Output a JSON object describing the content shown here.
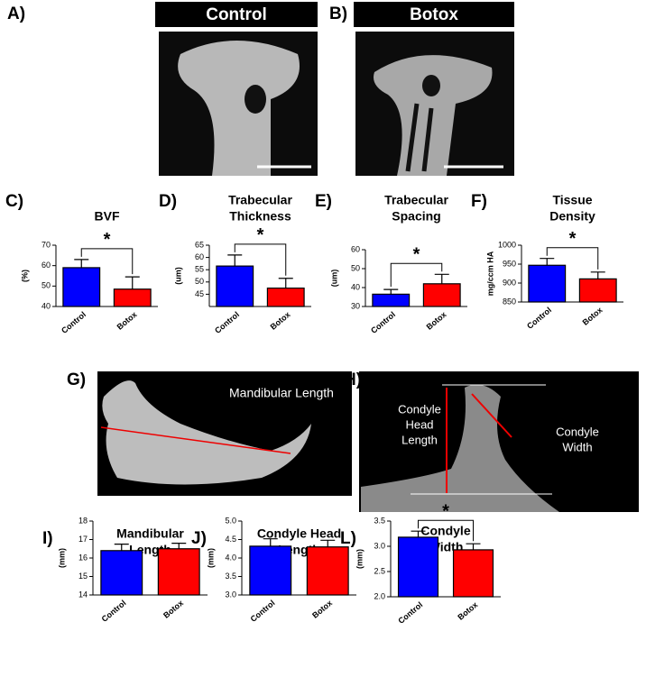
{
  "images": [
    {
      "label": "A)",
      "title": "Control"
    },
    {
      "label": "B)",
      "title": "Botox"
    },
    {
      "label": "G)",
      "annotation": "Mandibular Length"
    },
    {
      "label": "H)",
      "annotation_lines": [
        "Condyle",
        "Head",
        "Length"
      ],
      "annotation2_lines": [
        "Condyle",
        "Width"
      ]
    }
  ],
  "chart_data": [
    {
      "type": "bar",
      "label": "C)",
      "title_lines": [
        "BVF"
      ],
      "ylabel": "(%)",
      "categories": [
        "Control",
        "Botox"
      ],
      "colors": [
        "#0000ff",
        "#ff0000"
      ],
      "values": [
        59,
        48.5
      ],
      "errors": [
        4,
        6
      ],
      "ylim": [
        40,
        70
      ],
      "yticks": [
        40,
        50,
        60,
        70
      ],
      "significance": "*"
    },
    {
      "type": "bar",
      "label": "D)",
      "title_lines": [
        "Trabecular",
        "Thickness"
      ],
      "ylabel": "(um)",
      "categories": [
        "Control",
        "Botox"
      ],
      "colors": [
        "#0000ff",
        "#ff0000"
      ],
      "values": [
        56.5,
        47.5
      ],
      "errors": [
        4.5,
        4
      ],
      "ylim": [
        40,
        65
      ],
      "yticks": [
        45,
        50,
        55,
        60,
        65
      ],
      "significance": "*"
    },
    {
      "type": "bar",
      "label": "E)",
      "title_lines": [
        "Trabecular",
        "Spacing"
      ],
      "ylabel": "(um)",
      "categories": [
        "Control",
        "Botox"
      ],
      "colors": [
        "#0000ff",
        "#ff0000"
      ],
      "values": [
        36.5,
        42
      ],
      "errors": [
        2.5,
        5
      ],
      "ylim": [
        30,
        60
      ],
      "yticks": [
        30,
        40,
        50,
        60
      ],
      "significance": "*"
    },
    {
      "type": "bar",
      "label": "F)",
      "title_lines": [
        "Tissue",
        "Density"
      ],
      "ylabel": "mg/ccm HA",
      "categories": [
        "Control",
        "Botox"
      ],
      "colors": [
        "#0000ff",
        "#ff0000"
      ],
      "values": [
        947,
        911
      ],
      "errors": [
        18,
        18
      ],
      "ylim": [
        850,
        1000
      ],
      "yticks": [
        850,
        900,
        950,
        1000
      ],
      "significance": "*"
    },
    {
      "type": "bar",
      "label": "I)",
      "title_lines": [
        "Mandibular",
        "Length"
      ],
      "ylabel": "(mm)",
      "categories": [
        "Control",
        "Botox"
      ],
      "colors": [
        "#0000ff",
        "#ff0000"
      ],
      "values": [
        16.4,
        16.5
      ],
      "errors": [
        0.35,
        0.3
      ],
      "ylim": [
        14,
        18
      ],
      "yticks": [
        14,
        15,
        16,
        17,
        18
      ]
    },
    {
      "type": "bar",
      "label": "J)",
      "title_lines": [
        "Condyle Head",
        "Length"
      ],
      "ylabel": "(mm)",
      "categories": [
        "Control",
        "Botox"
      ],
      "colors": [
        "#0000ff",
        "#ff0000"
      ],
      "values": [
        4.32,
        4.3
      ],
      "errors": [
        0.2,
        0.18
      ],
      "ylim": [
        3.0,
        5.0
      ],
      "yticks": [
        {
          "value": 3.0,
          "label": "3.0"
        },
        {
          "value": 3.5,
          "label": "3.5"
        },
        {
          "value": 4.0,
          "label": "4.0"
        },
        {
          "value": 4.5,
          "label": "4.5"
        },
        {
          "value": 5.0,
          "label": "5.0"
        }
      ]
    },
    {
      "type": "bar",
      "label": "L)",
      "title_lines": [
        "Condyle",
        "Width"
      ],
      "ylabel": "(mm)",
      "categories": [
        "Control",
        "Botox"
      ],
      "colors": [
        "#0000ff",
        "#ff0000"
      ],
      "values": [
        3.18,
        2.93
      ],
      "errors": [
        0.12,
        0.12
      ],
      "ylim": [
        2.0,
        3.5
      ],
      "yticks": [
        {
          "value": 2.0,
          "label": "2.0"
        },
        {
          "value": 2.5,
          "label": "2.5"
        },
        {
          "value": 3.0,
          "label": "3.0"
        },
        {
          "value": 3.5,
          "label": "3.5"
        }
      ],
      "significance": "*"
    }
  ]
}
